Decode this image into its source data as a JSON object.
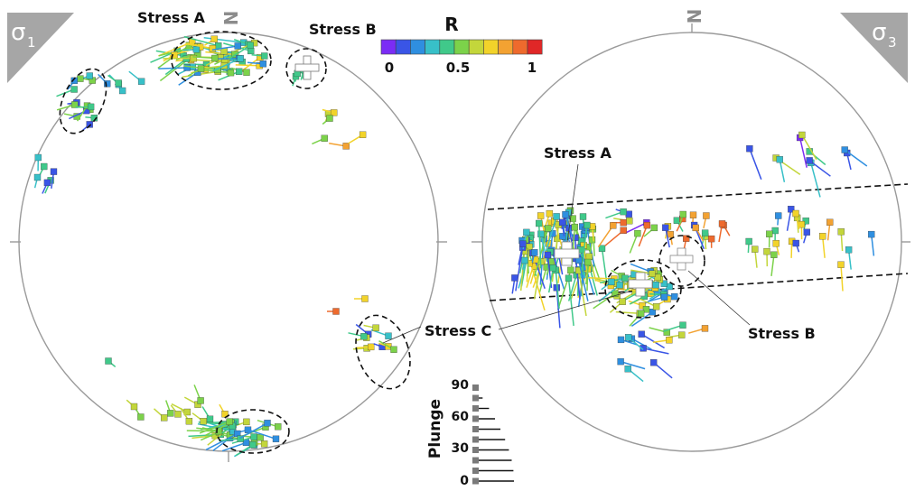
{
  "panels": {
    "left": {
      "sigma_main": "σ",
      "sigma_sub": "1",
      "north": "N"
    },
    "right": {
      "sigma_main": "σ",
      "sigma_sub": "3",
      "north": "N"
    }
  },
  "stress_labels": {
    "left_a": "Stress A",
    "left_b": "Stress B",
    "c": "Stress C",
    "right_a": "Stress A",
    "right_b": "Stress B"
  },
  "colorbar": {
    "title": "R",
    "ticks": [
      "0",
      "0.5",
      "1"
    ],
    "colors": [
      "#7b2cf5",
      "#3a55e6",
      "#2f8fe0",
      "#38c0c8",
      "#40c98a",
      "#7cd24a",
      "#c3d63b",
      "#f2d32a",
      "#f3a232",
      "#ee6a2d",
      "#e02727"
    ]
  },
  "plunge_legend": {
    "title": "Plunge",
    "ticks": [
      "90",
      "60",
      "30",
      "0"
    ]
  },
  "colors": {
    "circle": "#9a9a9a",
    "corner_bg": "#a6a6a6",
    "ellipse": "#111111",
    "band": "#111111"
  }
}
